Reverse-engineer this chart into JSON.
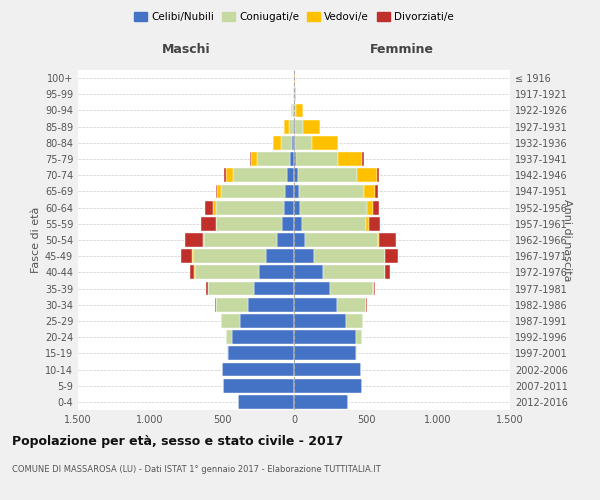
{
  "age_groups": [
    "0-4",
    "5-9",
    "10-14",
    "15-19",
    "20-24",
    "25-29",
    "30-34",
    "35-39",
    "40-44",
    "45-49",
    "50-54",
    "55-59",
    "60-64",
    "65-69",
    "70-74",
    "75-79",
    "80-84",
    "85-89",
    "90-94",
    "95-99",
    "100+"
  ],
  "birth_years": [
    "2012-2016",
    "2007-2011",
    "2002-2006",
    "1997-2001",
    "1992-1996",
    "1987-1991",
    "1982-1986",
    "1977-1981",
    "1972-1976",
    "1967-1971",
    "1962-1966",
    "1957-1961",
    "1952-1956",
    "1947-1951",
    "1942-1946",
    "1937-1941",
    "1932-1936",
    "1927-1931",
    "1922-1926",
    "1917-1921",
    "≤ 1916"
  ],
  "colors": {
    "celibi": "#4472C4",
    "coniugati": "#c5d9a0",
    "vedovi": "#ffc000",
    "divorziati": "#c0302a"
  },
  "male": {
    "celibi": [
      390,
      490,
      500,
      455,
      430,
      375,
      320,
      275,
      245,
      195,
      115,
      85,
      70,
      60,
      50,
      28,
      12,
      8,
      4,
      3,
      2
    ],
    "coniugati": [
      0,
      0,
      0,
      8,
      40,
      130,
      220,
      320,
      445,
      505,
      510,
      455,
      475,
      445,
      375,
      230,
      80,
      30,
      8,
      2,
      0
    ],
    "vedovi": [
      0,
      0,
      0,
      0,
      0,
      0,
      0,
      0,
      5,
      5,
      5,
      5,
      20,
      30,
      50,
      40,
      55,
      30,
      10,
      2,
      0
    ],
    "divorziati": [
      0,
      0,
      0,
      0,
      0,
      0,
      10,
      15,
      30,
      80,
      130,
      100,
      50,
      10,
      10,
      10,
      0,
      0,
      0,
      0,
      0
    ]
  },
  "female": {
    "celibi": [
      375,
      470,
      465,
      430,
      430,
      360,
      300,
      250,
      200,
      140,
      75,
      55,
      40,
      35,
      25,
      15,
      8,
      6,
      3,
      2,
      2
    ],
    "coniugati": [
      0,
      0,
      0,
      10,
      40,
      120,
      200,
      300,
      430,
      490,
      505,
      445,
      470,
      450,
      410,
      290,
      120,
      55,
      10,
      3,
      0
    ],
    "vedovi": [
      0,
      0,
      0,
      0,
      0,
      0,
      0,
      5,
      5,
      5,
      10,
      20,
      40,
      80,
      140,
      170,
      180,
      120,
      50,
      10,
      5
    ],
    "divorziati": [
      0,
      0,
      0,
      0,
      0,
      0,
      5,
      10,
      30,
      90,
      120,
      80,
      40,
      15,
      15,
      10,
      0,
      0,
      0,
      0,
      0
    ]
  },
  "xlim": 1500,
  "title": "Popolazione per età, sesso e stato civile - 2017",
  "subtitle": "COMUNE DI MASSAROSA (LU) - Dati ISTAT 1° gennaio 2017 - Elaborazione TUTTITALIA.IT",
  "xlabel_left": "Maschi",
  "xlabel_right": "Femmine",
  "ylabel_left": "Fasce di età",
  "ylabel_right": "Anni di nascita",
  "legend_labels": [
    "Celibi/Nubili",
    "Coniugati/e",
    "Vedovi/e",
    "Divorziati/e"
  ],
  "xticks": [
    -1500,
    -1000,
    -500,
    0,
    500,
    1000,
    1500
  ],
  "xtick_labels": [
    "1.500",
    "1.000",
    "500",
    "0",
    "500",
    "1.000",
    "1.500"
  ],
  "bg_color": "#f0f0f0",
  "plot_bg": "#ffffff"
}
